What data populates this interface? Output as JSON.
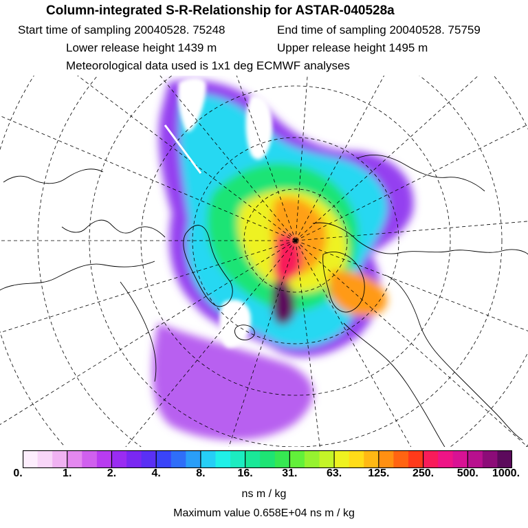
{
  "header": {
    "title": "Column-integrated S-R-Relationship for ASTAR-040528a",
    "start_time": "Start time of sampling 20040528. 75248",
    "end_time": "End time of sampling 20040528. 75759",
    "lower_release": "Lower release height 1439 m",
    "upper_release": "Upper release height 1495 m",
    "met_data": "Meteorological data used is 1x1 deg ECMWF analyses"
  },
  "map": {
    "projection": "polar-stereographic",
    "colors": {
      "graticule": "#000000",
      "coastline": "#000000",
      "background": "#ffffff"
    }
  },
  "legend": {
    "tick_labels": [
      "0.",
      "1.",
      "2.",
      "4.",
      "8.",
      "16.",
      "31.",
      "63.",
      "125.",
      "250.",
      "500.",
      "1000."
    ],
    "units": "ns m / kg",
    "colors": [
      "#fdeefd",
      "#f8d6f8",
      "#f0b2f2",
      "#e488ef",
      "#d060ee",
      "#b83cf0",
      "#9a2cf2",
      "#7a28f2",
      "#5a30f4",
      "#3a44f8",
      "#2f6ef8",
      "#2a9ef8",
      "#26cef6",
      "#20f0e8",
      "#1cecc0",
      "#1ae898",
      "#1ee474",
      "#36e852",
      "#62f03a",
      "#96f230",
      "#c4f428",
      "#eef220",
      "#ffdc18",
      "#ffb814",
      "#ff9012",
      "#ff6412",
      "#ff3a1a",
      "#f81c5a",
      "#ee1486",
      "#d81294",
      "#b8108e",
      "#8c0c78",
      "#5c0a5c"
    ],
    "max_value": "Maximum value  0.658E+04 ns m / kg"
  }
}
